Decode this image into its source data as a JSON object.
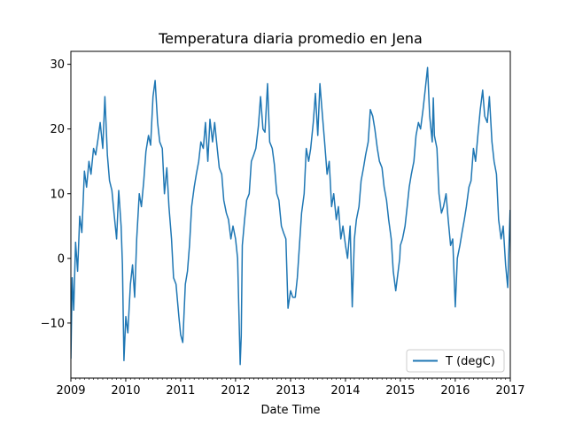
{
  "chart_data": {
    "type": "line",
    "title": "Temperatura diaria promedio en Jena",
    "xlabel": "Date Time",
    "ylabel": "",
    "xlim": [
      "2009-01-01",
      "2017-01-01"
    ],
    "ylim": [
      -18.5,
      32
    ],
    "x_ticks": [
      "2009",
      "2010",
      "2011",
      "2012",
      "2013",
      "2014",
      "2015",
      "2016",
      "2017"
    ],
    "y_ticks": [
      -10,
      0,
      10,
      20,
      30
    ],
    "y_tick_labels": [
      "−10",
      "0",
      "10",
      "20",
      "30"
    ],
    "grid": false,
    "legend": {
      "position": "lower-right",
      "entries": [
        "T (degC)"
      ]
    },
    "series": [
      {
        "name": "T (degC)",
        "color": "#1f77b4",
        "x": [
          "2009-01-01",
          "2009-01-10",
          "2009-01-20",
          "2009-02-01",
          "2009-02-15",
          "2009-03-01",
          "2009-03-15",
          "2009-04-01",
          "2009-04-15",
          "2009-05-01",
          "2009-05-15",
          "2009-06-01",
          "2009-06-15",
          "2009-07-01",
          "2009-07-15",
          "2009-08-01",
          "2009-08-15",
          "2009-09-01",
          "2009-09-15",
          "2009-10-01",
          "2009-10-15",
          "2009-11-01",
          "2009-11-15",
          "2009-12-01",
          "2009-12-10",
          "2009-12-20",
          "2010-01-01",
          "2010-01-15",
          "2010-02-01",
          "2010-02-15",
          "2010-03-01",
          "2010-03-15",
          "2010-04-01",
          "2010-04-15",
          "2010-05-01",
          "2010-05-15",
          "2010-06-01",
          "2010-06-15",
          "2010-07-01",
          "2010-07-15",
          "2010-08-01",
          "2010-08-15",
          "2010-09-01",
          "2010-09-15",
          "2010-10-01",
          "2010-10-15",
          "2010-11-01",
          "2010-11-15",
          "2010-12-01",
          "2010-12-20",
          "2011-01-01",
          "2011-01-15",
          "2011-02-01",
          "2011-02-15",
          "2011-03-01",
          "2011-03-15",
          "2011-04-01",
          "2011-04-15",
          "2011-05-01",
          "2011-05-15",
          "2011-06-01",
          "2011-06-15",
          "2011-07-01",
          "2011-07-15",
          "2011-08-01",
          "2011-08-15",
          "2011-09-01",
          "2011-09-15",
          "2011-10-01",
          "2011-10-15",
          "2011-11-01",
          "2011-11-15",
          "2011-12-01",
          "2011-12-15",
          "2012-01-01",
          "2012-01-15",
          "2012-02-01",
          "2012-02-08",
          "2012-02-15",
          "2012-03-01",
          "2012-03-15",
          "2012-04-01",
          "2012-04-15",
          "2012-05-01",
          "2012-05-15",
          "2012-06-01",
          "2012-06-15",
          "2012-07-01",
          "2012-07-15",
          "2012-08-01",
          "2012-08-15",
          "2012-09-01",
          "2012-09-15",
          "2012-10-01",
          "2012-10-15",
          "2012-11-01",
          "2012-11-15",
          "2012-12-01",
          "2012-12-15",
          "2013-01-01",
          "2013-01-15",
          "2013-02-01",
          "2013-02-15",
          "2013-03-01",
          "2013-03-15",
          "2013-04-01",
          "2013-04-15",
          "2013-05-01",
          "2013-05-15",
          "2013-06-01",
          "2013-06-15",
          "2013-07-01",
          "2013-07-15",
          "2013-08-01",
          "2013-08-15",
          "2013-09-01",
          "2013-09-15",
          "2013-10-01",
          "2013-10-15",
          "2013-11-01",
          "2013-11-15",
          "2013-12-01",
          "2013-12-15",
          "2014-01-01",
          "2014-01-15",
          "2014-02-01",
          "2014-02-15",
          "2014-03-01",
          "2014-03-15",
          "2014-04-01",
          "2014-04-15",
          "2014-05-01",
          "2014-05-15",
          "2014-06-01",
          "2014-06-15",
          "2014-07-01",
          "2014-07-15",
          "2014-08-01",
          "2014-08-15",
          "2014-09-01",
          "2014-09-15",
          "2014-10-01",
          "2014-10-15",
          "2014-11-01",
          "2014-11-15",
          "2014-12-01",
          "2014-12-28",
          "2015-01-01",
          "2015-01-15",
          "2015-02-01",
          "2015-02-15",
          "2015-03-01",
          "2015-03-15",
          "2015-04-01",
          "2015-04-15",
          "2015-05-01",
          "2015-05-15",
          "2015-06-01",
          "2015-06-15",
          "2015-07-01",
          "2015-07-15",
          "2015-08-01",
          "2015-08-08",
          "2015-08-15",
          "2015-09-01",
          "2015-09-15",
          "2015-10-01",
          "2015-10-15",
          "2015-11-01",
          "2015-11-15",
          "2015-12-01",
          "2015-12-15",
          "2016-01-01",
          "2016-01-15",
          "2016-02-01",
          "2016-02-15",
          "2016-03-01",
          "2016-03-15",
          "2016-04-01",
          "2016-04-15",
          "2016-05-01",
          "2016-05-15",
          "2016-06-01",
          "2016-06-15",
          "2016-07-01",
          "2016-07-15",
          "2016-08-01",
          "2016-08-15",
          "2016-09-01",
          "2016-09-15",
          "2016-10-01",
          "2016-10-15",
          "2016-11-01",
          "2016-11-15",
          "2016-12-01",
          "2016-12-15",
          "2016-12-31"
        ],
        "y": [
          -15.5,
          -3,
          -8,
          2.5,
          -2,
          6.5,
          4,
          13.5,
          11,
          15,
          13,
          17,
          16,
          18.5,
          21,
          17,
          25,
          16,
          12,
          10.5,
          7,
          3,
          10.5,
          5,
          -1,
          -15.8,
          -9,
          -11.5,
          -4,
          -1,
          -6,
          3,
          10,
          8,
          12,
          16.5,
          19,
          17.5,
          25,
          27.5,
          21,
          18,
          17,
          10,
          14,
          8,
          3,
          -3,
          -4,
          -9,
          -11.8,
          -13,
          -4,
          -2,
          2,
          8,
          11,
          13,
          15,
          18,
          17,
          21,
          15,
          21.5,
          18,
          21,
          17,
          14,
          13,
          9,
          7,
          6,
          3,
          5,
          3,
          0,
          -16.4,
          -12,
          2,
          6,
          9,
          10,
          15,
          16,
          17,
          20.5,
          25,
          20,
          19.5,
          27,
          18,
          17,
          14.5,
          10,
          9,
          5,
          4,
          3,
          -7.7,
          -5,
          -6,
          -6,
          -3,
          2,
          7,
          10,
          17,
          15,
          17,
          21,
          25.5,
          19,
          27,
          22,
          18,
          13,
          15,
          8,
          10,
          6,
          8,
          3,
          5,
          2,
          0,
          5,
          -7.5,
          3,
          6,
          8,
          12,
          14,
          16,
          18,
          23,
          22,
          20,
          17,
          15,
          14,
          11,
          9,
          6,
          3,
          -2,
          -5,
          0,
          2,
          3,
          5,
          8,
          11,
          13,
          15,
          19,
          21,
          20,
          23,
          26,
          29.5,
          22,
          18,
          24.8,
          19,
          17,
          10,
          7,
          8,
          10,
          6,
          2,
          3,
          -7.5,
          0,
          2,
          4,
          6,
          8,
          11,
          12,
          17,
          15,
          19.5,
          23,
          26,
          22,
          21,
          25,
          18,
          15,
          13,
          6,
          3,
          5,
          -1,
          -4.5,
          7.5
        ]
      }
    ]
  }
}
